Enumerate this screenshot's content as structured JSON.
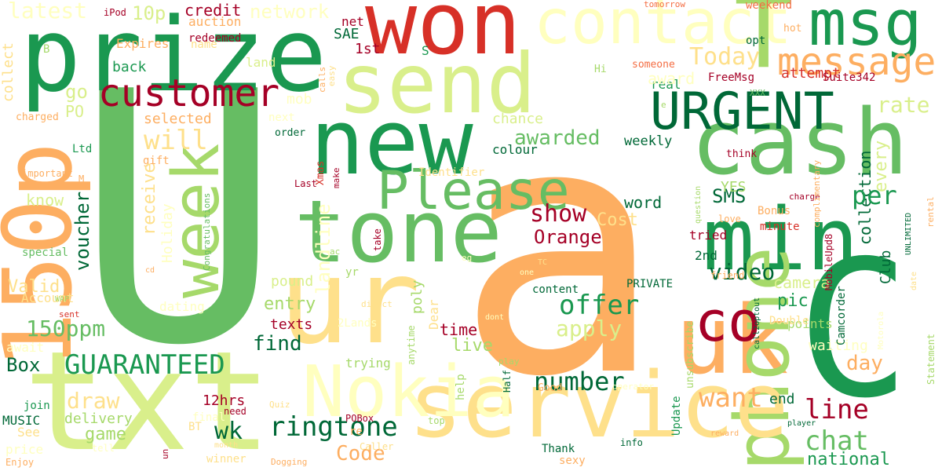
{
  "palette": {
    "dark_green": "#006837",
    "green": "#1a9850",
    "mid_green": "#66bd63",
    "light_green": "#a6d96a",
    "pale_green": "#d9ef8b",
    "pale_yellow": "#ffffbf",
    "light_orange": "#fee08b",
    "orange": "#fdae61",
    "dark_orange": "#f46d43",
    "red": "#d73027",
    "dark_red": "#a50026"
  },
  "words": [
    "U",
    "a",
    "prize",
    "won",
    "new",
    "send",
    "tone",
    "ur",
    "txt",
    "150p",
    "C",
    "cash",
    "uk",
    "min",
    "phone",
    "service",
    "Nokia",
    "contact",
    "msg",
    "T",
    "message",
    "URGENT",
    "week",
    "Please",
    "customer",
    "co",
    "latest",
    "10p",
    "credit",
    "auction",
    "network",
    "iPod",
    "net",
    "tomorrow",
    "weekend",
    "hot",
    "someone",
    "opt",
    "Expires",
    "redeemed",
    "name",
    "1st",
    "land",
    "SAE",
    "S",
    "attempt",
    "Today",
    "collect",
    "B",
    "real",
    "award",
    "FreeMsg",
    "Suite342",
    "XXX",
    "Hi",
    "back",
    "go",
    "mob",
    "rate",
    "PO",
    "charged",
    "next",
    "selected",
    "will",
    "chance",
    "awarded",
    "colour",
    "weekly",
    "order",
    "make",
    "calls",
    "easy",
    "Ltd",
    "gift",
    "Xmas",
    "Identifier",
    "collection",
    "every",
    "receive",
    "voucher",
    "Holiday",
    "landline",
    "per",
    "SMS",
    "YES",
    "think",
    "charge",
    "Box",
    "GUARANTEED",
    "150ppm",
    "find",
    "texts",
    "entry",
    "poly",
    "pound",
    "live",
    "time",
    "Dear",
    "show",
    "Orange",
    "word",
    "Cost",
    "offer",
    "apply",
    "video",
    "pic",
    "camera",
    "Club",
    "day",
    "draw",
    "wk",
    "ringtone",
    "number",
    "want",
    "end",
    "line",
    "chat",
    "national",
    "Code",
    "Account",
    "Valid",
    "dating",
    "special",
    "know",
    "important",
    "await",
    "MUSIC",
    "delivery",
    "game",
    "See",
    "price",
    "Enjoy",
    "12hrs",
    "BT",
    "final",
    "need",
    "winner",
    "month",
    "POBox",
    "Caller",
    "re",
    "Good",
    "help",
    "Half",
    "anytime",
    "trying",
    "2Lands",
    "yr",
    "Statement",
    "points",
    "waiting",
    "Double",
    "unsubscribe",
    "Update",
    "info",
    "operator",
    "sexy",
    "Thank",
    "reward",
    "player",
    "Quiz",
    "Dogging",
    "Congratulations",
    "content",
    "take",
    "PRIVATE",
    "2nd",
    "tried",
    "Bonus",
    "minute",
    "love",
    "friend",
    "question",
    "complimentary",
    "MobileUpd8",
    "UNLIMITED",
    "rental",
    "date",
    "Camcorder",
    "sent",
    "WAP",
    "ac",
    "one",
    "eg",
    "TC",
    "direct",
    "dont",
    "play",
    "Motorola",
    "top",
    "tell",
    "un",
    "call2optout",
    "e",
    "M",
    "cd",
    "join",
    "Last"
  ]
}
